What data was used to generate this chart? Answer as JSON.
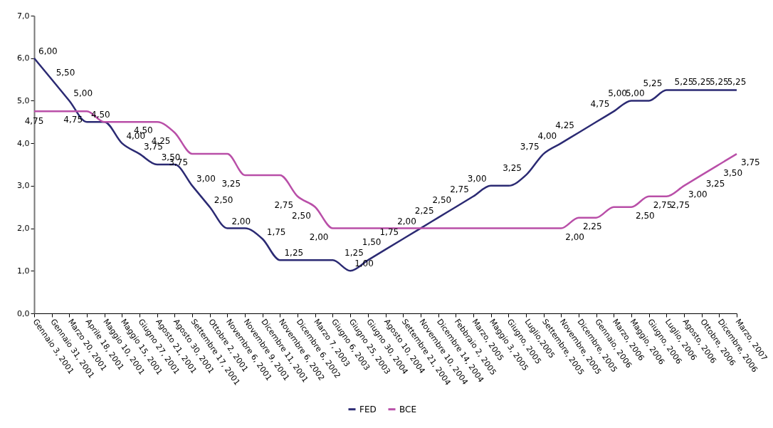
{
  "chart_data": {
    "type": "line",
    "categories": [
      "Gennaio 3, 2001",
      "Gennaio 31, 2001",
      "Marzo 20, 2001",
      "Aprile 18, 2001",
      "Maggio 10, 2001",
      "Maggio 15, 2001",
      "Giugno 27, 2001",
      "Agosto 21, 2001",
      "Agosto 30, 2001",
      "Settembre 17, 2001",
      "Ottobre 2, 2001",
      "Novembre 6, 2001",
      "Novembre 9, 2001",
      "Dicembre 11, 2001",
      "Novembre 6, 2002",
      "Dicembre 6, 2002",
      "Marzo 7, 2003",
      "Giugno 6, 2003",
      "Giugno 25, 2003",
      "Giugno 30, 2004",
      "Agosto 10, 2004",
      "Settembre 21, 2004",
      "Novembre 10, 2004",
      "Dicembre 14, 2004",
      "Febbraio 2, 2005",
      "Marzo, 2005",
      "Maggio 3, 2005",
      "Giugno, 2005",
      "Luglio,2005",
      "Settembre, 2005",
      "Novembre, 2005",
      "Dicembre, 2005",
      "Gennaio, 2006",
      "Marzo, 2006",
      "Maggio, 2006",
      "Giugno, 2006",
      "Luglio, 2006",
      "Agosto, 2006",
      "Ottobre, 2006",
      "Dicembre, 2006",
      "Marzo, 2007"
    ],
    "series": [
      {
        "name": "FED",
        "color": "#2b2a73",
        "values": [
          6.0,
          5.5,
          5.0,
          4.5,
          4.5,
          4.0,
          3.75,
          3.5,
          3.5,
          3.0,
          2.5,
          2.0,
          2.0,
          1.75,
          1.25,
          1.25,
          1.25,
          1.25,
          1.0,
          1.25,
          1.5,
          1.75,
          2.0,
          2.25,
          2.5,
          2.75,
          3.0,
          3.0,
          3.25,
          3.75,
          4.0,
          4.25,
          4.5,
          4.75,
          5.0,
          5.0,
          5.25,
          5.25,
          5.25,
          5.25,
          5.25
        ],
        "value_labels": [
          "6,00",
          "5,50",
          "5,00",
          "4,50",
          null,
          "4,00",
          "3,75",
          "3,50",
          null,
          "3,00",
          "2,50",
          "2,00",
          null,
          "1,75",
          "1,25",
          null,
          null,
          null,
          "1,00",
          "1,25",
          "1,50",
          "1,75",
          "2,00",
          "2,25",
          "2,50",
          "2,75",
          "3,00",
          null,
          "3,25",
          "3,75",
          "4,00",
          "4,25",
          null,
          "4,75",
          "5,00",
          "5,00",
          "5,25",
          "5,25",
          "5,25",
          "5,25",
          "5,25"
        ]
      },
      {
        "name": "BCE",
        "color": "#b94fa8",
        "values": [
          4.75,
          4.75,
          4.75,
          4.75,
          4.5,
          4.5,
          4.5,
          4.5,
          4.25,
          3.75,
          3.75,
          3.75,
          3.25,
          3.25,
          3.25,
          2.75,
          2.5,
          2.0,
          2.0,
          2.0,
          2.0,
          2.0,
          2.0,
          2.0,
          2.0,
          2.0,
          2.0,
          2.0,
          2.0,
          2.0,
          2.0,
          2.25,
          2.25,
          2.5,
          2.5,
          2.75,
          2.75,
          3.0,
          3.25,
          3.5,
          3.75
        ],
        "value_labels": [
          "4,75",
          null,
          null,
          "4,75",
          null,
          null,
          null,
          "4,50",
          "4,25",
          "3,75",
          null,
          null,
          "3,25",
          null,
          null,
          "2,75",
          "2,50",
          "2,00",
          null,
          null,
          null,
          null,
          null,
          null,
          null,
          null,
          null,
          null,
          null,
          null,
          "2,00",
          "2,25",
          null,
          null,
          "2,50",
          "2,75",
          "2,75",
          "3,00",
          "3,25",
          "3,50",
          "3,75"
        ]
      }
    ],
    "ylim": [
      0,
      7
    ],
    "yticks": [
      {
        "value": 0,
        "label": "0,0"
      },
      {
        "value": 1,
        "label": "1,0"
      },
      {
        "value": 2,
        "label": "2,0"
      },
      {
        "value": 3,
        "label": "3,0"
      },
      {
        "value": 4,
        "label": "4,0"
      },
      {
        "value": 5,
        "label": "5,0"
      },
      {
        "value": 6,
        "label": "6,0"
      },
      {
        "value": 7,
        "label": "7,0"
      }
    ],
    "grid": false,
    "legend": "bottom",
    "marker": "none",
    "line_style": "solid"
  }
}
